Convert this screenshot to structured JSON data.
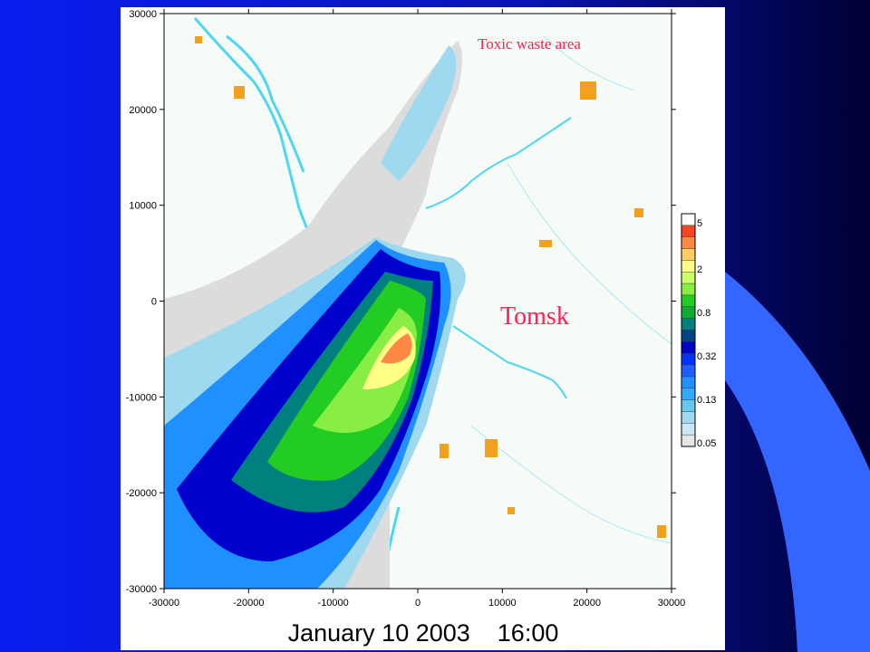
{
  "map": {
    "xticks": [
      -30000,
      -20000,
      -10000,
      0,
      10000,
      20000,
      30000
    ],
    "yticks": [
      -30000,
      -20000,
      -10000,
      0,
      10000,
      20000,
      30000
    ],
    "annotations": [
      "Toxic waste area",
      "Tomsk"
    ],
    "legend": {
      "labels": [
        5,
        2,
        0.8,
        0.32,
        0.13,
        0.05
      ]
    },
    "caption": "January 10 2003    16:00"
  }
}
